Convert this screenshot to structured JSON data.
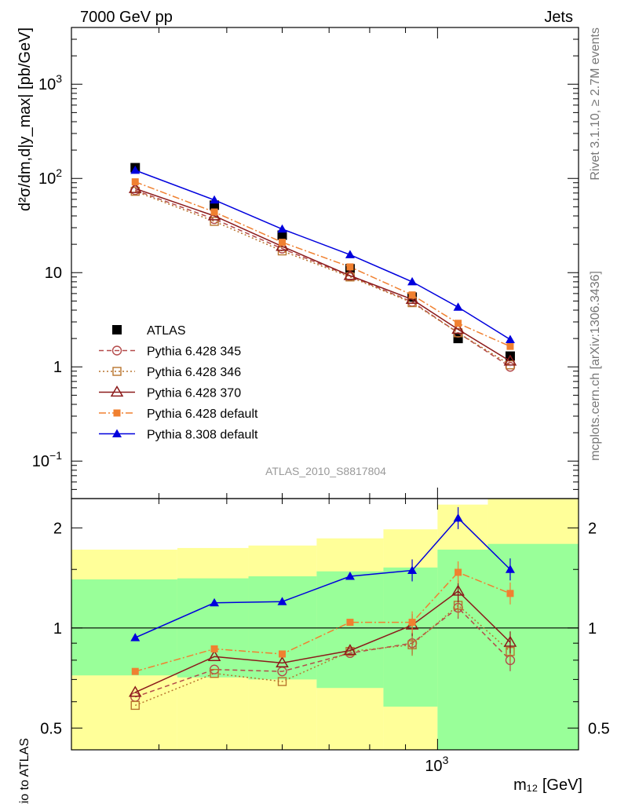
{
  "header": {
    "left": "7000 GeV pp",
    "right": "Jets",
    "side_top": "Rivet 3.1.10, ≥ 2.7M events",
    "side_bottom": "mcplots.cern.ch [arXiv:1306.3436]",
    "watermark": "ATLAS_2010_S8817804"
  },
  "chart_data": [
    {
      "type": "scatter",
      "panel": "main",
      "ylabel": "d²σ/dm,d|y_max| [pb/GeV]",
      "yscale": "log",
      "ylim": [
        0.04,
        4000
      ],
      "xscale": "log",
      "xlim": [
        300,
        1590
      ],
      "x": [
        370,
        480,
        600,
        750,
        920,
        1070,
        1270
      ],
      "y_tick_labels": [
        "10⁻¹",
        "1",
        "10",
        "10²",
        "10³"
      ],
      "y_tick_values": [
        0.1,
        1,
        10,
        100,
        1000
      ],
      "legend_position": "lower-left",
      "series": [
        {
          "name": "ATLAS",
          "color": "#000000",
          "marker": "filled-square",
          "line": "none",
          "y": [
            130,
            52,
            25,
            11,
            5.5,
            2.0,
            1.3
          ]
        },
        {
          "name": "Pythia 6.428 345",
          "color": "#b44a4a",
          "marker": "open-circle",
          "line": "dashed",
          "y": [
            75,
            37,
            18,
            9.2,
            4.9,
            2.3,
            1.0
          ]
        },
        {
          "name": "Pythia 6.428 346",
          "color": "#b8742d",
          "marker": "open-square",
          "line": "dotted",
          "y": [
            73,
            35,
            17,
            9.0,
            4.8,
            2.3,
            1.05
          ]
        },
        {
          "name": "Pythia 6.428 370",
          "color": "#8b1a1a",
          "marker": "open-triangle",
          "line": "solid",
          "y": [
            78,
            40,
            19,
            9.3,
            5.2,
            2.5,
            1.15
          ]
        },
        {
          "name": "Pythia 6.428 default",
          "color": "#f08030",
          "marker": "filled-small-square",
          "line": "dash-dot",
          "y": [
            92,
            44,
            21,
            11.5,
            5.8,
            2.9,
            1.65
          ]
        },
        {
          "name": "Pythia 8.308 default",
          "color": "#0000dd",
          "marker": "filled-triangle",
          "line": "solid",
          "y": [
            122,
            59,
            29,
            15.5,
            8.0,
            4.3,
            1.95
          ]
        }
      ]
    },
    {
      "type": "scatter",
      "panel": "ratio",
      "ylabel": "Ratio to ATLAS",
      "xlabel": "m₁₂ [GeV]",
      "x_tick_label": "10³",
      "x_tick_value": 1000,
      "yscale": "log",
      "ylim": [
        0.43,
        2.45
      ],
      "y_tick_labels": [
        "0.5",
        "1",
        "2"
      ],
      "y_tick_values": [
        0.5,
        1,
        2
      ],
      "bands": {
        "edges": [
          300,
          425,
          537,
          672,
          837,
          1000,
          1180,
          1590
        ],
        "inner": {
          "color": "#99ff99",
          "low": [
            0.72,
            0.71,
            0.7,
            0.66,
            0.58,
            0.43,
            0.43
          ],
          "high": [
            1.4,
            1.41,
            1.43,
            1.48,
            1.52,
            1.72,
            1.79
          ]
        },
        "outer": {
          "color": "#ffff99",
          "low": [
            0.43,
            0.43,
            0.43,
            0.43,
            0.43,
            0.43,
            0.43
          ],
          "high": [
            1.72,
            1.74,
            1.77,
            1.86,
            1.98,
            2.35,
            2.45
          ]
        }
      },
      "series": [
        {
          "name": "Pythia 6.428 345",
          "y": [
            0.62,
            0.75,
            0.74,
            0.84,
            0.9,
            1.15,
            0.8
          ]
        },
        {
          "name": "Pythia 6.428 346",
          "y": [
            0.585,
            0.73,
            0.69,
            0.85,
            0.89,
            1.17,
            0.85
          ]
        },
        {
          "name": "Pythia 6.428 370",
          "y": [
            0.64,
            0.82,
            0.785,
            0.855,
            1.02,
            1.29,
            0.905
          ]
        },
        {
          "name": "Pythia 6.428 default",
          "y": [
            0.74,
            0.865,
            0.835,
            1.04,
            1.04,
            1.47,
            1.27
          ]
        },
        {
          "name": "Pythia 8.308 default",
          "y": [
            0.935,
            1.19,
            1.2,
            1.43,
            1.49,
            2.14,
            1.5
          ]
        }
      ]
    }
  ]
}
